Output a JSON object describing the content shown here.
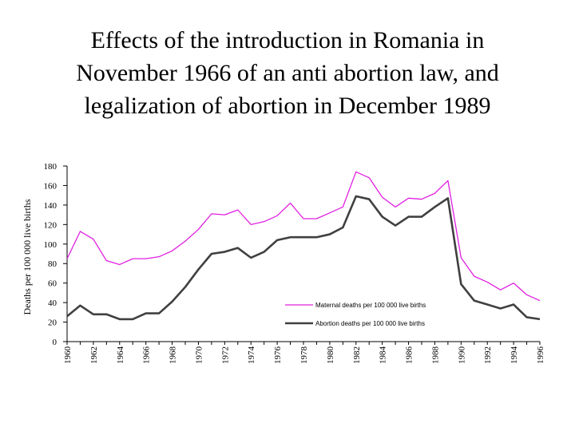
{
  "title": {
    "line1": "Effects of the introduction in Romania in",
    "line2": "November 1966 of an anti abortion law, and",
    "line3": "legalization of abortion in December 1989"
  },
  "chart_data": {
    "type": "line",
    "ylabel": "Deaths per 100 000 live births",
    "ylim": [
      0,
      180
    ],
    "yticks": [
      0,
      20,
      40,
      60,
      80,
      100,
      120,
      140,
      160,
      180
    ],
    "x": [
      1960,
      1961,
      1962,
      1963,
      1964,
      1965,
      1966,
      1967,
      1968,
      1969,
      1970,
      1971,
      1972,
      1973,
      1974,
      1975,
      1976,
      1977,
      1978,
      1979,
      1980,
      1981,
      1982,
      1983,
      1984,
      1985,
      1986,
      1987,
      1988,
      1989,
      1990,
      1991,
      1992,
      1993,
      1994,
      1995,
      1996
    ],
    "xticks": [
      "1960",
      "1962",
      "1964",
      "1966",
      "1968",
      "1970",
      "1972",
      "1974",
      "1976",
      "1978",
      "1980",
      "1982",
      "1984",
      "1986",
      "1988",
      "1990",
      "1992",
      "1994",
      "1996"
    ],
    "grid": false,
    "legend": "lower-right",
    "series": [
      {
        "name": "Maternal deaths per 100 000 live births",
        "color": "#e020e0",
        "values": [
          85,
          113,
          105,
          83,
          79,
          85,
          85,
          87,
          93,
          103,
          115,
          131,
          130,
          135,
          120,
          123,
          129,
          142,
          126,
          126,
          132,
          138,
          174,
          168,
          148,
          138,
          147,
          146,
          152,
          165,
          86,
          67,
          61,
          53,
          60,
          48,
          42
        ]
      },
      {
        "name": "Abortion deaths per 100 000 live births",
        "color": "#404040",
        "values": [
          26,
          37,
          28,
          28,
          23,
          23,
          29,
          29,
          41,
          56,
          74,
          90,
          92,
          96,
          86,
          92,
          104,
          107,
          107,
          107,
          110,
          117,
          149,
          146,
          128,
          119,
          128,
          128,
          138,
          147,
          59,
          42,
          38,
          34,
          38,
          25,
          23
        ]
      }
    ]
  }
}
